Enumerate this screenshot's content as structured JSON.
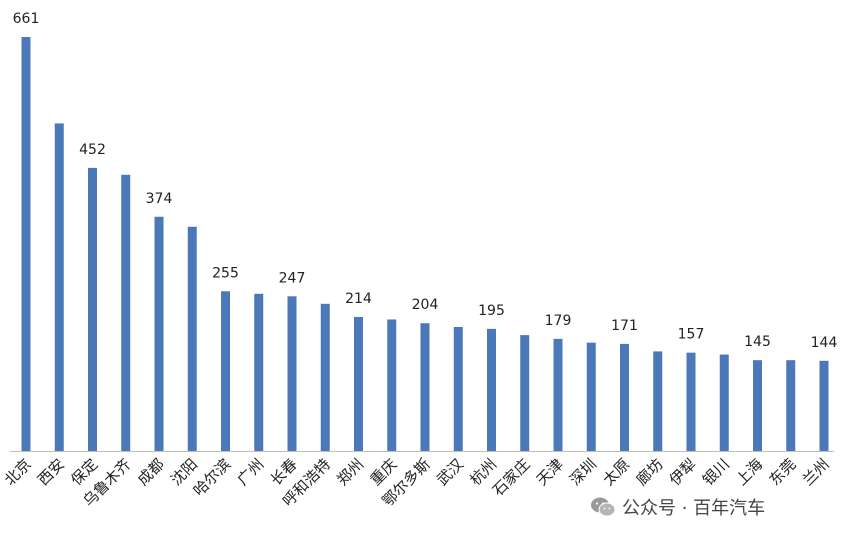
{
  "chart_data": {
    "type": "bar",
    "categories": [
      "北京",
      "西安",
      "保定",
      "乌鲁木齐",
      "成都",
      "沈阳",
      "哈尔滨",
      "广州",
      "长春",
      "呼和浩特",
      "郑州",
      "重庆",
      "鄂尔多斯",
      "武汉",
      "杭州",
      "石家庄",
      "天津",
      "深圳",
      "太原",
      "廊坊",
      "伊犁",
      "银川",
      "上海",
      "东莞",
      "兰州"
    ],
    "values": [
      661,
      523,
      452,
      441,
      374,
      358,
      255,
      251,
      247,
      235,
      214,
      210,
      204,
      198,
      195,
      185,
      179,
      173,
      171,
      159,
      157,
      154,
      145,
      145,
      144
    ],
    "data_labels": [
      {
        "index": 0,
        "text": "661"
      },
      {
        "index": 2,
        "text": "452"
      },
      {
        "index": 4,
        "text": "374"
      },
      {
        "index": 6,
        "text": "255"
      },
      {
        "index": 8,
        "text": "247"
      },
      {
        "index": 10,
        "text": "214"
      },
      {
        "index": 12,
        "text": "204"
      },
      {
        "index": 14,
        "text": "195"
      },
      {
        "index": 16,
        "text": "179"
      },
      {
        "index": 18,
        "text": "171"
      },
      {
        "index": 20,
        "text": "157"
      },
      {
        "index": 22,
        "text": "145"
      },
      {
        "index": 24,
        "text": "144"
      }
    ],
    "ylim": [
      0,
      661
    ],
    "grid": false,
    "legend": "none",
    "bar_color": "#4a78b8"
  },
  "watermark": {
    "text": "公众号 · 百年汽车",
    "icon": "wechat-icon"
  }
}
